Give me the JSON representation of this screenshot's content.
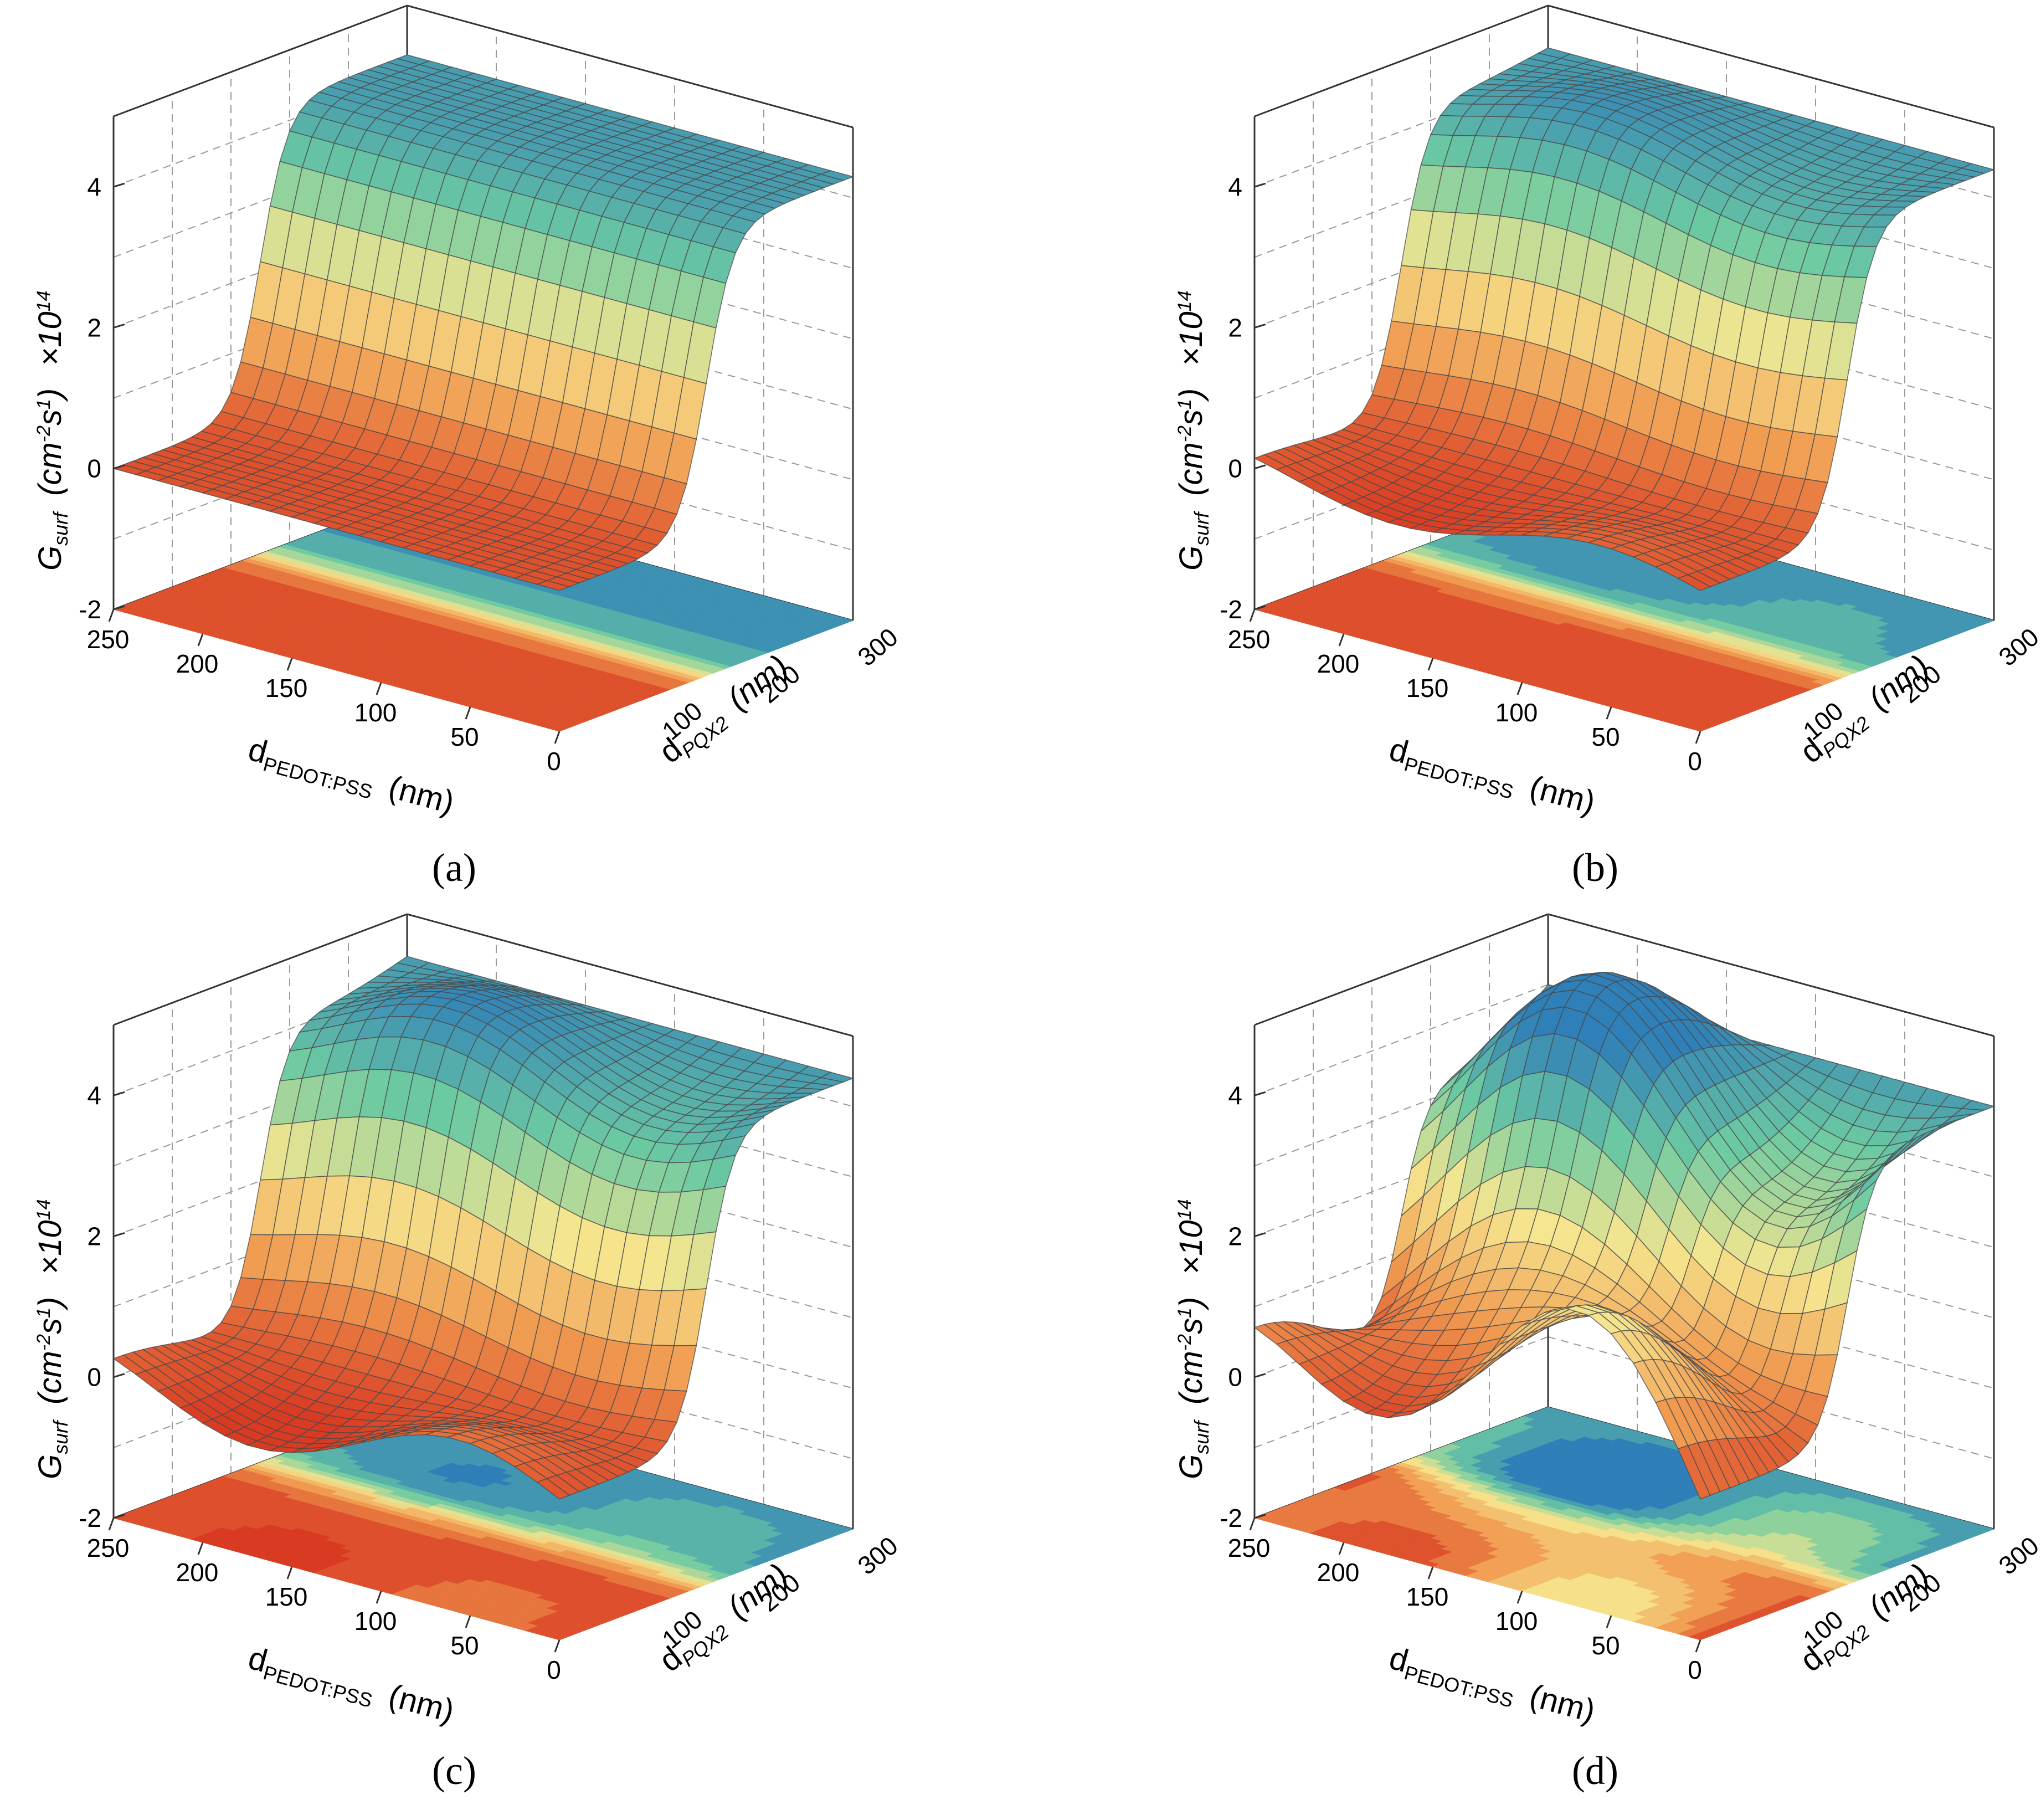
{
  "figure": {
    "panel_labels": [
      "(a)",
      "(b)",
      "(c)",
      "(d)"
    ],
    "axes": {
      "z_label": "G",
      "z_label_sub": "surf",
      "z_unit": "(cm",
      "z_unit_exp1": "-2",
      "z_unit_mid": "s",
      "z_unit_exp2": "1",
      "z_unit_end": ")",
      "z_scale": "×10",
      "z_scale_exp": "14",
      "x_label": "d",
      "x_label_sub": "PEDOT:PSS",
      "x_unit": "(nm)",
      "y_label": "d",
      "y_label_sub": "PQX2",
      "y_unit": "(nm)"
    }
  },
  "chart_data": [
    {
      "panel": "(a)",
      "type": "surface3d",
      "x_axis": {
        "ticks": [
          "250",
          "200",
          "150",
          "100",
          "50",
          "0"
        ],
        "range": [
          0,
          250
        ]
      },
      "y_axis": {
        "ticks": [
          "100",
          "200",
          "300"
        ],
        "range": [
          0,
          300
        ]
      },
      "z_axis": {
        "ticks": [
          "-2",
          "0",
          "2",
          "4"
        ],
        "range": [
          -2,
          5
        ],
        "multiplier": "1e14"
      },
      "projection_contour": true,
      "colormap": [
        "#d83a22",
        "#f09a50",
        "#f6e68f",
        "#6ccaa2",
        "#2f7fb8"
      ],
      "step_position_y": 150,
      "low_level": 0.0,
      "high_level": 4.3,
      "wave_amplitude": 0.0
    },
    {
      "panel": "(b)",
      "type": "surface3d",
      "x_axis": {
        "ticks": [
          "250",
          "200",
          "150",
          "100",
          "50",
          "0"
        ],
        "range": [
          0,
          250
        ]
      },
      "y_axis": {
        "ticks": [
          "100",
          "200",
          "300"
        ],
        "range": [
          0,
          300
        ]
      },
      "z_axis": {
        "ticks": [
          "-2",
          "0",
          "2",
          "4"
        ],
        "range": [
          -2,
          5
        ],
        "multiplier": "1e14"
      },
      "projection_contour": true,
      "colormap": [
        "#d83a22",
        "#f09a50",
        "#f6e68f",
        "#6ccaa2",
        "#2f7fb8"
      ],
      "step_position_y": 150,
      "low_level": 0.0,
      "high_level": 4.4,
      "wave_amplitude": 0.25
    },
    {
      "panel": "(c)",
      "type": "surface3d",
      "x_axis": {
        "ticks": [
          "250",
          "200",
          "150",
          "100",
          "50",
          "0"
        ],
        "range": [
          0,
          250
        ]
      },
      "y_axis": {
        "ticks": [
          "100",
          "200",
          "300"
        ],
        "range": [
          0,
          300
        ]
      },
      "z_axis": {
        "ticks": [
          "-2",
          "0",
          "2",
          "4"
        ],
        "range": [
          -2,
          5
        ],
        "multiplier": "1e14"
      },
      "projection_contour": true,
      "colormap": [
        "#d83a22",
        "#f09a50",
        "#f6e68f",
        "#6ccaa2",
        "#2f7fb8"
      ],
      "step_position_y": 150,
      "low_level": 0.0,
      "high_level": 4.4,
      "wave_amplitude": 0.45
    },
    {
      "panel": "(d)",
      "type": "surface3d",
      "x_axis": {
        "ticks": [
          "250",
          "200",
          "150",
          "100",
          "50",
          "0"
        ],
        "range": [
          0,
          250
        ]
      },
      "y_axis": {
        "ticks": [
          "100",
          "200",
          "300"
        ],
        "range": [
          0,
          300
        ]
      },
      "z_axis": {
        "ticks": [
          "-2",
          "0",
          "2",
          "4"
        ],
        "range": [
          -2,
          5
        ],
        "multiplier": "1e14"
      },
      "projection_contour": true,
      "colormap": [
        "#d83a22",
        "#f09a50",
        "#f6e68f",
        "#6ccaa2",
        "#2f7fb8"
      ],
      "step_position_y": 150,
      "low_level": 0.0,
      "high_level": 4.0,
      "wave_amplitude": 1.2
    }
  ]
}
